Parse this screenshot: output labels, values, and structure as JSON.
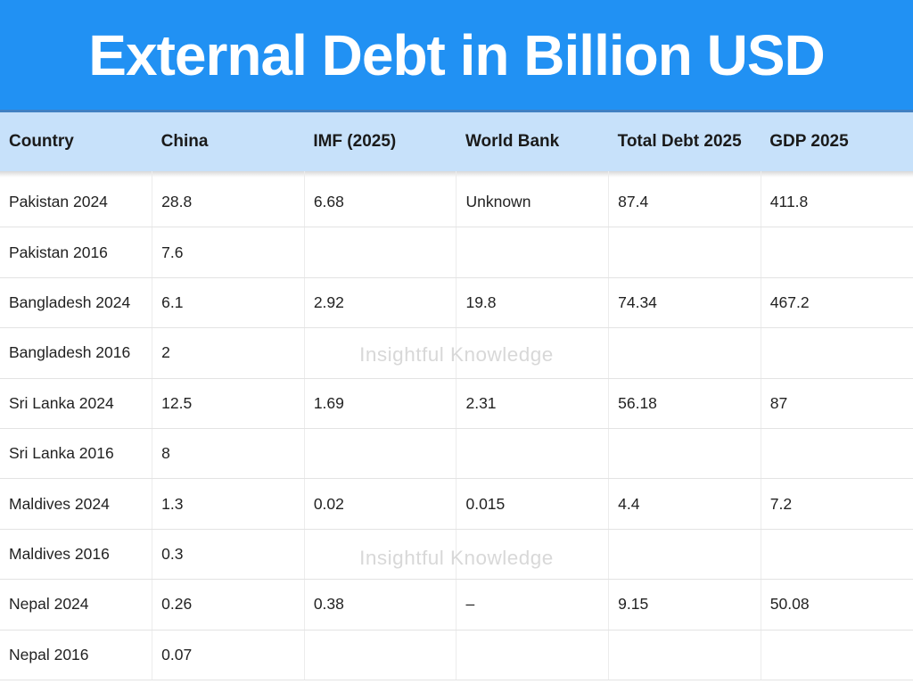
{
  "header": {
    "title": "External Debt in Billion USD"
  },
  "watermark": {
    "text": "Insightful Knowledge"
  },
  "colors": {
    "banner_blue": "#2191F3",
    "banner_bottom_edge": "#4180C2",
    "header_row_bg": "#C7E1FA",
    "header_text": "#1A1A1A",
    "cell_text": "#222222",
    "row_border": "#E3E3E3",
    "column_border": "#ECECEC",
    "watermark_gray": "#D8D8D8",
    "title_text": "#FFFFFF"
  },
  "chart_data": {
    "type": "table",
    "title": "External Debt in Billion USD",
    "columns": [
      "Country",
      "China",
      "IMF (2025)",
      "World Bank",
      "Total Debt 2025",
      "GDP 2025"
    ],
    "rows": [
      [
        "Pakistan 2024",
        "28.8",
        "6.68",
        "Unknown",
        "87.4",
        "411.8"
      ],
      [
        "Pakistan 2016",
        "7.6",
        "",
        "",
        "",
        ""
      ],
      [
        "Bangladesh 2024",
        "6.1",
        "2.92",
        "19.8",
        "74.34",
        "467.2"
      ],
      [
        "Bangladesh 2016",
        "2",
        "",
        "",
        "",
        ""
      ],
      [
        "Sri Lanka 2024",
        "12.5",
        "1.69",
        "2.31",
        "56.18",
        "87"
      ],
      [
        "Sri Lanka 2016",
        "8",
        "",
        "",
        "",
        ""
      ],
      [
        "Maldives 2024",
        "1.3",
        "0.02",
        "0.015",
        "4.4",
        "7.2"
      ],
      [
        "Maldives 2016",
        "0.3",
        "",
        "",
        "",
        ""
      ],
      [
        "Nepal 2024",
        "0.26",
        "0.38",
        "–",
        "9.15",
        "50.08"
      ],
      [
        "Nepal 2016",
        "0.07",
        "",
        "",
        "",
        ""
      ]
    ]
  }
}
